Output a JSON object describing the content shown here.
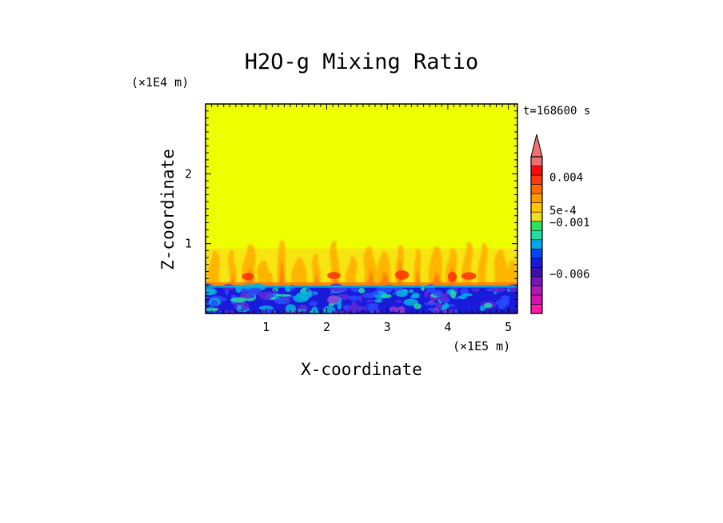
{
  "chart_data": {
    "type": "heatmap",
    "title": "H2O-g Mixing Ratio",
    "xlabel": "X-coordinate",
    "ylabel": "Z-coordinate",
    "x_scale_label": "(×1E5 m)",
    "y_scale_label": "(×1E4 m)",
    "time_label": "t=168600 s",
    "xlim": [
      0,
      5.15
    ],
    "ylim": [
      0,
      3.0
    ],
    "x_ticks": [
      "1",
      "2",
      "3",
      "4",
      "5"
    ],
    "x_tick_values": [
      1,
      2,
      3,
      4,
      5
    ],
    "y_ticks": [
      "1",
      "2"
    ],
    "y_tick_values": [
      1,
      2
    ],
    "fields": {
      "background": {
        "color": "#eeff00",
        "z_range": [
          0,
          3.0
        ]
      },
      "plume_zone": {
        "colors": [
          "#ffd020",
          "#ffb000",
          "#ff7a10",
          "#ff3a00"
        ],
        "z_range": [
          0.4,
          1.0
        ]
      },
      "surface_layer": {
        "colors": [
          "#1a1adb",
          "#2a4aff",
          "#5a2ad8",
          "#00b4e0",
          "#20e0a0",
          "#9a40d0"
        ],
        "z_range": [
          0,
          0.4
        ]
      }
    },
    "colorbar": {
      "colors": [
        "#ff1aa8",
        "#d810b0",
        "#b018b8",
        "#7a14b8",
        "#3a10b0",
        "#1a18d8",
        "#0046ff",
        "#00a8e8",
        "#20e0a0",
        "#30e060",
        "#f0e020",
        "#ffc800",
        "#ff9a00",
        "#ff6a00",
        "#ff3a10",
        "#ff0a0a",
        "#f07070"
      ],
      "labels": [
        "0.004",
        "5e-4",
        "−0.001",
        "−0.006"
      ],
      "extend": "max"
    }
  }
}
